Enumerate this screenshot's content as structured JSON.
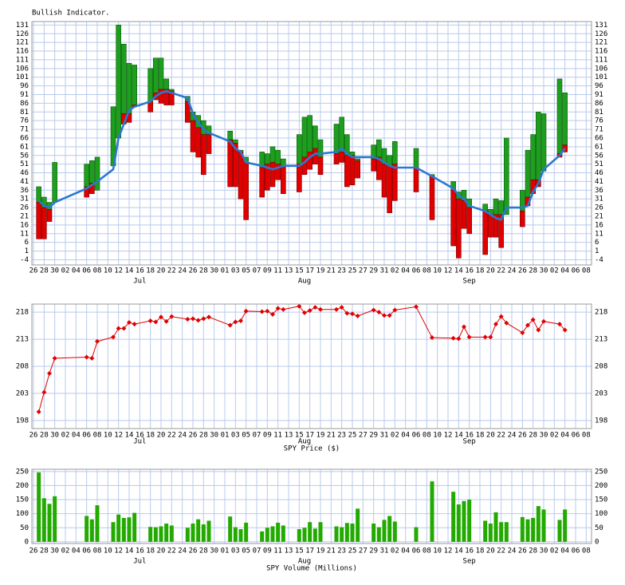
{
  "x_axis": {
    "xlim": [
      -0.3,
      105
    ],
    "xticks": [
      {
        "value": 0,
        "label": "26"
      },
      {
        "value": 2,
        "label": "28"
      },
      {
        "value": 4,
        "label": "30"
      },
      {
        "value": 6,
        "label": "02"
      },
      {
        "value": 8,
        "label": "04"
      },
      {
        "value": 10,
        "label": "06"
      },
      {
        "value": 12,
        "label": "08"
      },
      {
        "value": 14,
        "label": "10"
      },
      {
        "value": 16,
        "label": "12"
      },
      {
        "value": 18,
        "label": "14"
      },
      {
        "value": 20,
        "label": "16"
      },
      {
        "value": 22,
        "label": "18"
      },
      {
        "value": 24,
        "label": "20"
      },
      {
        "value": 26,
        "label": "22"
      },
      {
        "value": 28,
        "label": "24"
      },
      {
        "value": 30,
        "label": "26"
      },
      {
        "value": 32,
        "label": "28"
      },
      {
        "value": 34,
        "label": "30"
      },
      {
        "value": 36,
        "label": "01"
      },
      {
        "value": 38,
        "label": "03"
      },
      {
        "value": 40,
        "label": "05"
      },
      {
        "value": 42,
        "label": "07"
      },
      {
        "value": 44,
        "label": "09"
      },
      {
        "value": 46,
        "label": "11"
      },
      {
        "value": 48,
        "label": "13"
      },
      {
        "value": 50,
        "label": "15"
      },
      {
        "value": 52,
        "label": "17"
      },
      {
        "value": 54,
        "label": "19"
      },
      {
        "value": 56,
        "label": "21"
      },
      {
        "value": 58,
        "label": "23"
      },
      {
        "value": 60,
        "label": "25"
      },
      {
        "value": 62,
        "label": "27"
      },
      {
        "value": 64,
        "label": "29"
      },
      {
        "value": 66,
        "label": "31"
      },
      {
        "value": 68,
        "label": "02"
      },
      {
        "value": 70,
        "label": "04"
      },
      {
        "value": 72,
        "label": "06"
      },
      {
        "value": 74,
        "label": "08"
      },
      {
        "value": 76,
        "label": "10"
      },
      {
        "value": 78,
        "label": "12"
      },
      {
        "value": 80,
        "label": "14"
      },
      {
        "value": 82,
        "label": "16"
      },
      {
        "value": 84,
        "label": "18"
      },
      {
        "value": 86,
        "label": "20"
      },
      {
        "value": 88,
        "label": "22"
      },
      {
        "value": 90,
        "label": "24"
      },
      {
        "value": 92,
        "label": "26"
      },
      {
        "value": 94,
        "label": "28"
      },
      {
        "value": 96,
        "label": "30"
      },
      {
        "value": 98,
        "label": "02"
      },
      {
        "value": 100,
        "label": "04"
      },
      {
        "value": 102,
        "label": "06"
      },
      {
        "value": 104,
        "label": "08"
      }
    ],
    "months": [
      {
        "value": 20,
        "label": "Jul"
      },
      {
        "value": 51,
        "label": "Aug"
      },
      {
        "value": 82,
        "label": "Sep"
      }
    ],
    "x": [
      1,
      2,
      3,
      4,
      10,
      11,
      12,
      15,
      16,
      17,
      18,
      19,
      22,
      23,
      24,
      25,
      26,
      29,
      30,
      31,
      32,
      33,
      37,
      38,
      39,
      40,
      43,
      44,
      45,
      46,
      47,
      50,
      51,
      52,
      53,
      54,
      57,
      58,
      59,
      60,
      61,
      64,
      65,
      66,
      67,
      68,
      72,
      75,
      79,
      80,
      81,
      82,
      85,
      86,
      87,
      88,
      89,
      92,
      93,
      94,
      95,
      96,
      99,
      100
    ]
  },
  "chart_data": [
    {
      "type": "range",
      "title": "Bullish Indicator.",
      "high": [
        38,
        32,
        29,
        52,
        51,
        53,
        55,
        84,
        131,
        120,
        109,
        108,
        106,
        112,
        112,
        100,
        94,
        90,
        81,
        79,
        76,
        73,
        70,
        65,
        59,
        55,
        58,
        57,
        61,
        59,
        54,
        68,
        78,
        79,
        73,
        65,
        74,
        78,
        68,
        58,
        54,
        62,
        65,
        60,
        56,
        64,
        60,
        45,
        41,
        35,
        36,
        31,
        28,
        25,
        31,
        30,
        66,
        36,
        59,
        68,
        81,
        80,
        100,
        92
      ],
      "mid": [
        29,
        26,
        25,
        29,
        38,
        40,
        36,
        50,
        66,
        80,
        80,
        85,
        87,
        92,
        94,
        94,
        93,
        87,
        76,
        72,
        68,
        68,
        65,
        63,
        58,
        52,
        49,
        51,
        52,
        51,
        50,
        51,
        55,
        58,
        60,
        55,
        57,
        58,
        56,
        56,
        53,
        54,
        55,
        51,
        50,
        51,
        49,
        44,
        36,
        31,
        30,
        26,
        24,
        22,
        22,
        22,
        22,
        24,
        32,
        42,
        42,
        47,
        57,
        62
      ],
      "low": [
        8,
        8,
        18,
        29,
        32,
        34,
        36,
        50,
        66,
        74,
        75,
        84,
        81,
        88,
        86,
        85,
        85,
        75,
        58,
        55,
        45,
        57,
        38,
        38,
        31,
        19,
        32,
        36,
        38,
        42,
        34,
        35,
        45,
        48,
        51,
        45,
        51,
        52,
        38,
        39,
        43,
        47,
        42,
        32,
        23,
        30,
        35,
        19,
        4,
        -3,
        14,
        11,
        -1,
        9,
        9,
        3,
        22,
        15,
        27,
        34,
        38,
        47,
        55,
        58
      ],
      "line": [
        30,
        27,
        26,
        29,
        37,
        39,
        41,
        48,
        66,
        74,
        82,
        84,
        87,
        90,
        92,
        93,
        92,
        89,
        80,
        75,
        71,
        69,
        64,
        60,
        58,
        52,
        50,
        49,
        48,
        49,
        50,
        50,
        52,
        55,
        57,
        57,
        58,
        60,
        57,
        55,
        55,
        55,
        54,
        52,
        50,
        49,
        49,
        44,
        37,
        33,
        31,
        27,
        24,
        22,
        20,
        19,
        26,
        26,
        27,
        35,
        40,
        48,
        56,
        60
      ],
      "colors": {
        "up": "#1e9e1e",
        "down": "#e00000",
        "line": "#2a78d2"
      },
      "ylim": [
        -7,
        133
      ],
      "yticks": [
        131,
        126,
        121,
        116,
        111,
        106,
        101,
        96,
        91,
        86,
        81,
        76,
        71,
        66,
        61,
        56,
        51,
        46,
        41,
        36,
        31,
        26,
        21,
        16,
        11,
        6,
        1,
        -4
      ],
      "grid": true
    },
    {
      "type": "line",
      "x_label": "SPY Price ($)",
      "values": [
        199.6,
        203.2,
        206.7,
        209.5,
        209.7,
        209.5,
        212.6,
        213.4,
        215.0,
        215.0,
        216.1,
        215.8,
        216.4,
        216.2,
        217.1,
        216.3,
        217.2,
        216.7,
        216.8,
        216.5,
        216.8,
        217.1,
        215.6,
        216.2,
        216.4,
        218.2,
        218.1,
        218.2,
        217.6,
        218.7,
        218.5,
        219.1,
        217.9,
        218.3,
        218.9,
        218.5,
        218.5,
        218.9,
        217.8,
        217.7,
        217.3,
        218.4,
        218.0,
        217.4,
        217.4,
        218.4,
        219.0,
        213.3,
        213.2,
        213.1,
        215.3,
        213.4,
        213.4,
        213.4,
        215.8,
        217.2,
        216.0,
        214.2,
        215.6,
        216.6,
        214.7,
        216.3,
        215.8,
        214.7
      ],
      "color": "#e00000",
      "ylim": [
        196.5,
        219.5
      ],
      "yticks": [
        218,
        213,
        208,
        203,
        198
      ],
      "grid": true
    },
    {
      "type": "bar",
      "x_label": "SPY Volume (Millions)",
      "values": [
        247,
        155,
        135,
        162,
        92,
        80,
        130,
        70,
        97,
        85,
        87,
        103,
        53,
        52,
        55,
        65,
        58,
        50,
        65,
        80,
        62,
        75,
        90,
        52,
        45,
        68,
        37,
        50,
        55,
        68,
        58,
        45,
        50,
        70,
        47,
        70,
        55,
        52,
        67,
        65,
        118,
        65,
        52,
        78,
        92,
        72,
        52,
        215,
        178,
        133,
        145,
        150,
        75,
        65,
        105,
        70,
        70,
        88,
        80,
        85,
        127,
        115,
        78,
        115
      ],
      "color": "#22aa00",
      "ylim": [
        -6,
        258
      ],
      "yticks": [
        250,
        200,
        150,
        100,
        50,
        0
      ],
      "grid": true
    }
  ]
}
